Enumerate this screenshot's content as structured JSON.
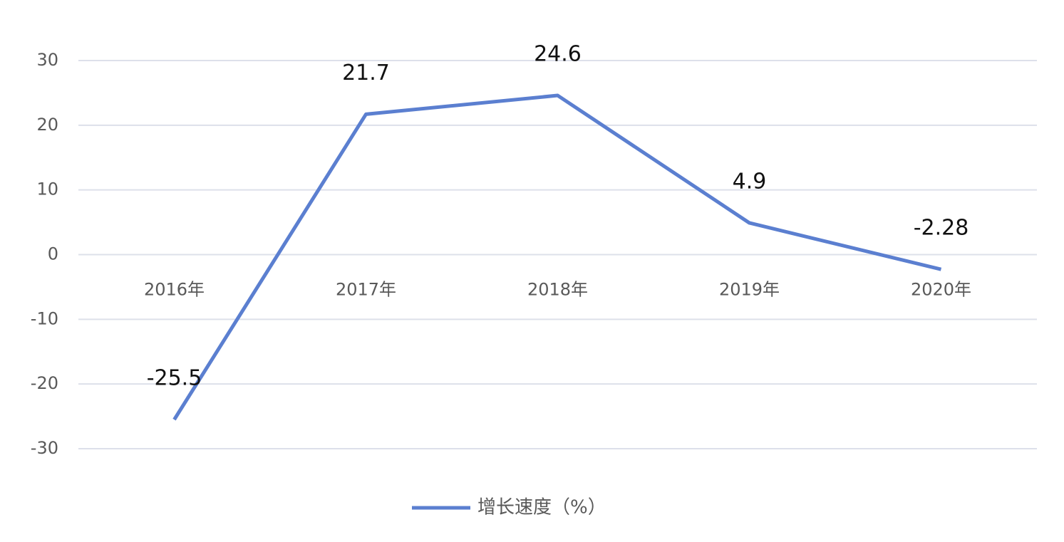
{
  "chart_data": {
    "type": "line",
    "categories": [
      "2016年",
      "2017年",
      "2018年",
      "2019年",
      "2020年"
    ],
    "series": [
      {
        "name": "增长速度（%）",
        "color": "#5b7fd0",
        "values": [
          -25.5,
          21.7,
          24.6,
          4.9,
          -2.28
        ]
      }
    ],
    "ylim": [
      -30,
      30
    ],
    "yticks": [
      -30,
      -20,
      -10,
      0,
      10,
      20,
      30
    ],
    "grid": true,
    "legend": "bottom"
  }
}
